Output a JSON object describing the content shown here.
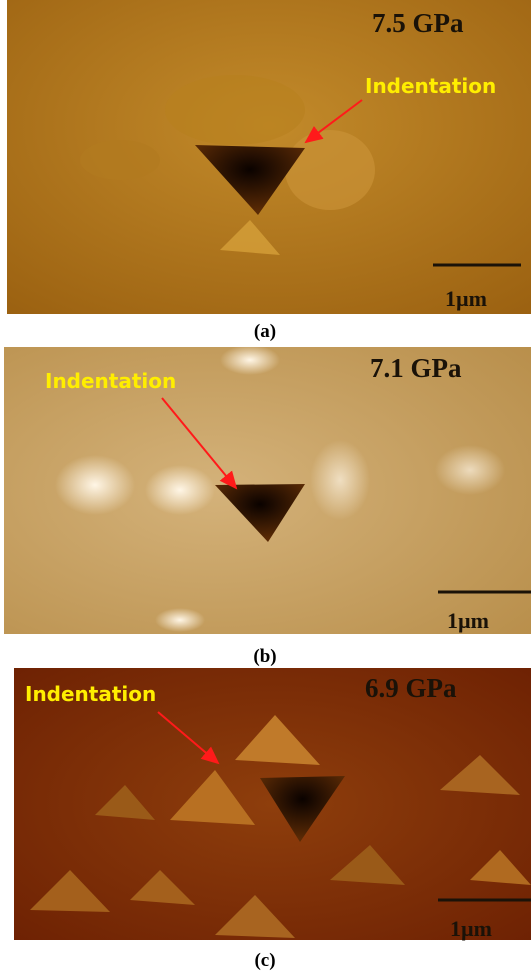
{
  "panels": [
    {
      "pressure": "7.5 GPa",
      "annotation": "Indentation",
      "scale_bar": "1µm",
      "caption": "(a)"
    },
    {
      "pressure": "7.1 GPa",
      "annotation": "Indentation",
      "scale_bar": "1µm",
      "caption": "(b)"
    },
    {
      "pressure": "6.9 GPa",
      "annotation": "Indentation",
      "scale_bar": "1µm",
      "caption": "(c)"
    }
  ]
}
